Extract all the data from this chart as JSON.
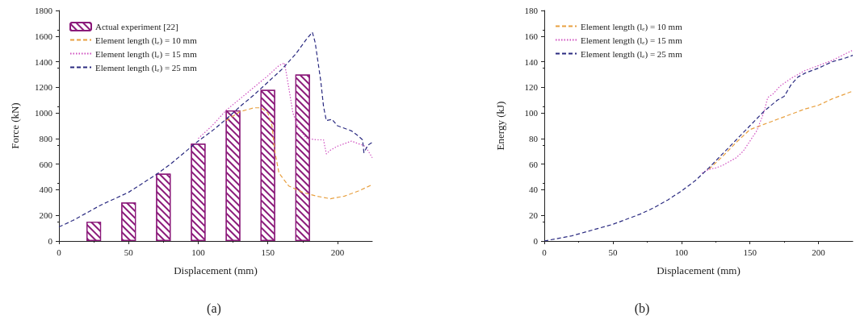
{
  "chart_data": [
    {
      "type": "line",
      "xlabel": "Displacement (mm)",
      "ylabel": "Force (kN)",
      "xlim": [
        0,
        225
      ],
      "xticks": [
        0,
        50,
        100,
        150,
        200
      ],
      "ylim": [
        0,
        1800
      ],
      "yticks": [
        0,
        200,
        400,
        600,
        800,
        1000,
        1200,
        1400,
        1600,
        1800
      ],
      "legend": "top left",
      "marker": "none",
      "annotations": [
        "(a)"
      ],
      "series": [
        {
          "type": "bar",
          "name": "Actual experiment [22]",
          "color": "#8b1a7a",
          "x": [
            25,
            50,
            75,
            100,
            125,
            150,
            175
          ],
          "values": [
            150,
            300,
            525,
            760,
            1020,
            1180,
            1300
          ]
        },
        {
          "name": "Element length (l$_{e}$) = 10 mm",
          "color": "#e8a040",
          "line_style": "dashed",
          "x": [
            120,
            130,
            140,
            145,
            150,
            153,
            155,
            158,
            165,
            175,
            185,
            195,
            205,
            215,
            225
          ],
          "values": [
            940,
            1010,
            1040,
            1040,
            1000,
            900,
            700,
            530,
            430,
            380,
            350,
            330,
            350,
            390,
            440
          ]
        },
        {
          "name": "Element length (l$_{e}$) = 15 mm",
          "color": "#d050c0",
          "line_style": "dotted",
          "x": [
            100,
            110,
            120,
            130,
            140,
            150,
            158,
            162,
            165,
            168,
            172,
            178,
            185,
            190,
            192,
            195,
            200,
            210,
            220,
            225
          ],
          "values": [
            800,
            900,
            1020,
            1110,
            1200,
            1290,
            1370,
            1390,
            1200,
            1000,
            880,
            800,
            790,
            790,
            680,
            710,
            740,
            780,
            740,
            650
          ]
        },
        {
          "name": "Element length (l$_{e}$) = 25 mm",
          "color": "#2a2a80",
          "line_style": "dashed",
          "x": [
            0,
            10,
            20,
            30,
            40,
            50,
            60,
            70,
            80,
            90,
            100,
            110,
            120,
            130,
            140,
            150,
            160,
            170,
            178,
            182,
            184,
            188,
            190,
            192,
            196,
            200,
            210,
            215,
            218,
            219,
            222,
            225
          ],
          "values": [
            110,
            160,
            220,
            280,
            330,
            380,
            450,
            520,
            600,
            690,
            780,
            860,
            950,
            1050,
            1140,
            1240,
            1340,
            1460,
            1580,
            1630,
            1550,
            1250,
            1050,
            940,
            950,
            900,
            860,
            820,
            790,
            690,
            750,
            770
          ]
        }
      ]
    },
    {
      "type": "line",
      "xlabel": "Displacement (mm)",
      "ylabel": "Energy (kJ)",
      "xlim": [
        0,
        225
      ],
      "xticks": [
        0,
        50,
        100,
        150,
        200
      ],
      "ylim": [
        0,
        180
      ],
      "yticks": [
        0,
        20,
        40,
        60,
        80,
        100,
        120,
        140,
        160,
        180
      ],
      "legend": "top left",
      "marker": "none",
      "annotations": [
        "(b)"
      ],
      "series": [
        {
          "name": "Element length (l$_{e}$) = 10 mm",
          "color": "#e8a040",
          "line_style": "dashed",
          "x": [
            120,
            130,
            140,
            150,
            160,
            170,
            180,
            190,
            200,
            210,
            225
          ],
          "values": [
            56,
            66,
            77,
            87,
            91,
            95,
            99,
            103,
            106,
            111,
            117
          ]
        },
        {
          "name": "Element length (l$_{e}$) = 15 mm",
          "color": "#d050c0",
          "line_style": "dotted",
          "x": [
            115,
            120,
            125,
            130,
            140,
            145,
            150,
            155,
            160,
            163,
            167,
            172,
            180,
            190,
            200,
            210,
            225
          ],
          "values": [
            53,
            56,
            57,
            59,
            65,
            70,
            78,
            86,
            100,
            112,
            115,
            121,
            127,
            133,
            137,
            141,
            149
          ]
        },
        {
          "name": "Element length (l$_{e}$) = 25 mm",
          "color": "#2a2a80",
          "line_style": "dashed",
          "x": [
            0,
            10,
            20,
            30,
            40,
            50,
            60,
            70,
            80,
            90,
            100,
            110,
            120,
            130,
            140,
            150,
            160,
            170,
            175,
            180,
            185,
            190,
            200,
            210,
            220,
            225
          ],
          "values": [
            0,
            2,
            4,
            7,
            10,
            13,
            17,
            21,
            26,
            32,
            39,
            47,
            57,
            68,
            79,
            90,
            101,
            110,
            113,
            122,
            128,
            131,
            135,
            140,
            143,
            145
          ]
        }
      ]
    }
  ]
}
